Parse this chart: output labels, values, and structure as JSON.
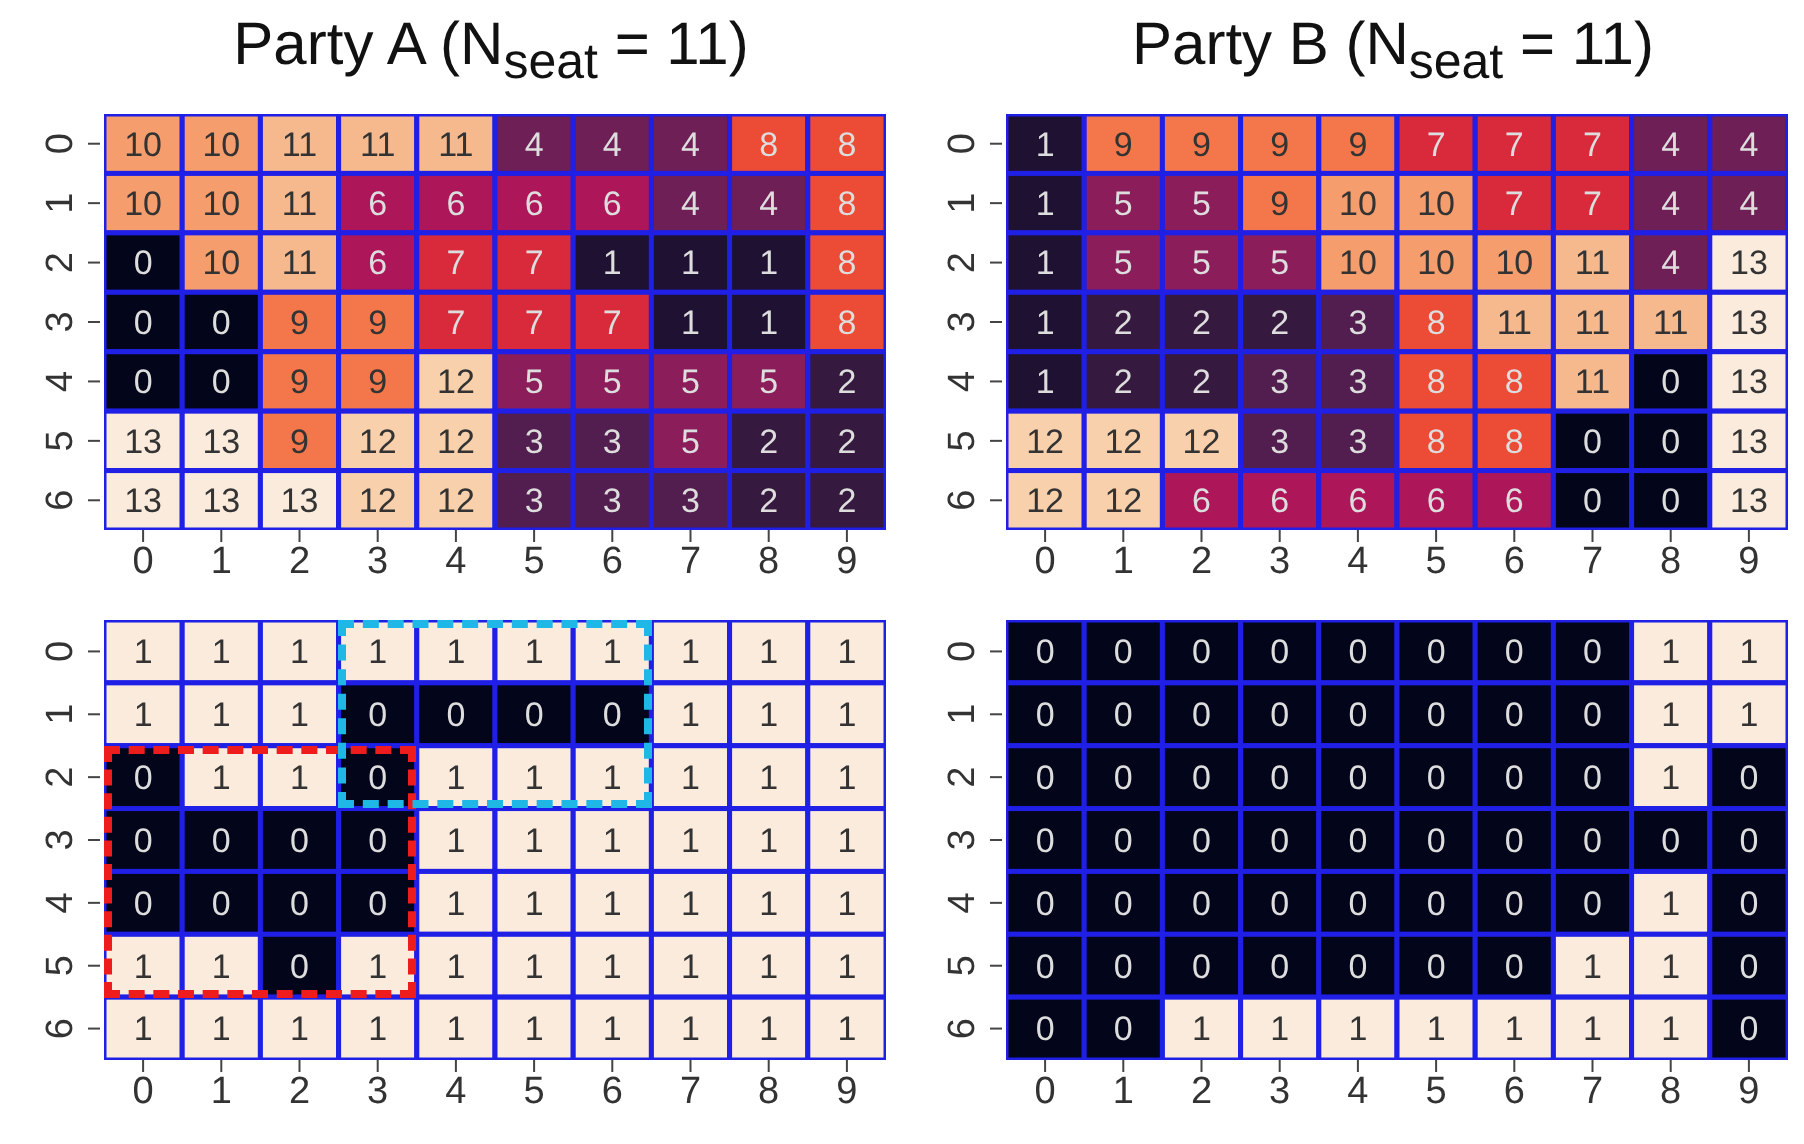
{
  "chart_data": [
    {
      "type": "heatmap",
      "title": "Party A (N$_{seat}$ = 11)",
      "categories": [
        "0",
        "1",
        "2",
        "3",
        "4",
        "5",
        "6",
        "7",
        "8",
        "9"
      ],
      "y_categories": [
        "0",
        "1",
        "2",
        "3",
        "4",
        "5",
        "6"
      ],
      "data_labels": true,
      "colors": [
        "#03051a",
        "#1e1131",
        "#36193e",
        "#521e4f",
        "#6d1f56",
        "#8b1d5a",
        "#ad1759",
        "#d82a3a",
        "#ec4b35",
        "#f3774a",
        "#f59d6c",
        "#f6b98e",
        "#f8d0ab",
        "#faebdd"
      ],
      "cells": [
        [
          10,
          10,
          11,
          11,
          11,
          4,
          4,
          4,
          8,
          8
        ],
        [
          10,
          10,
          11,
          6,
          6,
          6,
          6,
          4,
          4,
          8
        ],
        [
          0,
          10,
          11,
          6,
          7,
          7,
          1,
          1,
          1,
          8
        ],
        [
          0,
          0,
          9,
          9,
          7,
          7,
          7,
          1,
          1,
          8
        ],
        [
          0,
          0,
          9,
          9,
          12,
          5,
          5,
          5,
          5,
          2
        ],
        [
          13,
          13,
          9,
          12,
          12,
          3,
          3,
          5,
          2,
          2
        ],
        [
          13,
          13,
          13,
          12,
          12,
          3,
          3,
          3,
          2,
          2
        ]
      ]
    },
    {
      "type": "heatmap",
      "title": "Party B (N$_{seat}$ = 11)",
      "categories": [
        "0",
        "1",
        "2",
        "3",
        "4",
        "5",
        "6",
        "7",
        "8",
        "9"
      ],
      "y_categories": [
        "0",
        "1",
        "2",
        "3",
        "4",
        "5",
        "6"
      ],
      "data_labels": true,
      "colors": [
        "#03051a",
        "#1e1131",
        "#36193e",
        "#521e4f",
        "#6d1f56",
        "#8b1d5a",
        "#ad1759",
        "#d82a3a",
        "#ec4b35",
        "#f3774a",
        "#f59d6c",
        "#f6b98e",
        "#f8d0ab",
        "#faebdd"
      ],
      "cells": [
        [
          1,
          9,
          9,
          9,
          9,
          7,
          7,
          7,
          4,
          4
        ],
        [
          1,
          5,
          5,
          9,
          10,
          10,
          7,
          7,
          4,
          4
        ],
        [
          1,
          5,
          5,
          5,
          10,
          10,
          10,
          11,
          4,
          13
        ],
        [
          1,
          2,
          2,
          2,
          3,
          8,
          11,
          11,
          11,
          13
        ],
        [
          1,
          2,
          2,
          3,
          3,
          8,
          8,
          11,
          0,
          13
        ],
        [
          12,
          12,
          12,
          3,
          3,
          8,
          8,
          0,
          0,
          13
        ],
        [
          12,
          12,
          6,
          6,
          6,
          6,
          6,
          0,
          0,
          13
        ]
      ]
    },
    {
      "type": "heatmap",
      "categories": [
        "0",
        "1",
        "2",
        "3",
        "4",
        "5",
        "6",
        "7",
        "8",
        "9"
      ],
      "y_categories": [
        "0",
        "1",
        "2",
        "3",
        "4",
        "5",
        "6"
      ],
      "data_labels": true,
      "colors": [
        "#03051a",
        "#faebdd"
      ],
      "cells": [
        [
          1,
          1,
          1,
          1,
          1,
          1,
          1,
          1,
          1,
          1
        ],
        [
          1,
          1,
          1,
          0,
          0,
          0,
          0,
          1,
          1,
          1
        ],
        [
          0,
          1,
          1,
          0,
          1,
          1,
          1,
          1,
          1,
          1
        ],
        [
          0,
          0,
          0,
          0,
          1,
          1,
          1,
          1,
          1,
          1
        ],
        [
          0,
          0,
          0,
          0,
          1,
          1,
          1,
          1,
          1,
          1
        ],
        [
          1,
          1,
          0,
          1,
          1,
          1,
          1,
          1,
          1,
          1
        ],
        [
          1,
          1,
          1,
          1,
          1,
          1,
          1,
          1,
          1,
          1
        ]
      ]
    },
    {
      "type": "heatmap",
      "categories": [
        "0",
        "1",
        "2",
        "3",
        "4",
        "5",
        "6",
        "7",
        "8",
        "9"
      ],
      "y_categories": [
        "0",
        "1",
        "2",
        "3",
        "4",
        "5",
        "6"
      ],
      "data_labels": true,
      "colors": [
        "#03051a",
        "#faebdd"
      ],
      "cells": [
        [
          0,
          0,
          0,
          0,
          0,
          0,
          0,
          0,
          1,
          1
        ],
        [
          0,
          0,
          0,
          0,
          0,
          0,
          0,
          0,
          1,
          1
        ],
        [
          0,
          0,
          0,
          0,
          0,
          0,
          0,
          0,
          1,
          0
        ],
        [
          0,
          0,
          0,
          0,
          0,
          0,
          0,
          0,
          0,
          0
        ],
        [
          0,
          0,
          0,
          0,
          0,
          0,
          0,
          0,
          1,
          0
        ],
        [
          0,
          0,
          0,
          0,
          0,
          0,
          0,
          1,
          1,
          0
        ],
        [
          0,
          0,
          1,
          1,
          1,
          1,
          1,
          1,
          1,
          0
        ]
      ]
    }
  ]
}
